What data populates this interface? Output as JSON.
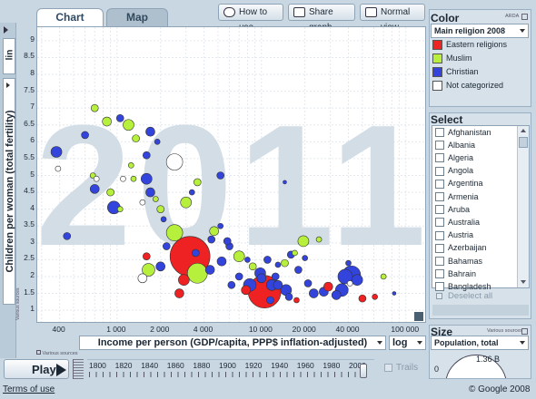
{
  "tabs": {
    "chart": "Chart",
    "map": "Map"
  },
  "toolbar": {
    "how_to_use": "How to use",
    "share_graph": "Share graph",
    "normal_view": "Normal view"
  },
  "y_scale": "lin",
  "y_axis": {
    "label": "Children per woman (total fertility)",
    "ticks": [
      "9",
      "8.5",
      "8",
      "7.5",
      "7",
      "6.5",
      "6",
      "5.5",
      "5",
      "4.5",
      "4",
      "3.5",
      "3",
      "2.5",
      "2",
      "1.5",
      "1"
    ],
    "sources": "Various sources"
  },
  "x_axis": {
    "label": "Income per person (GDP/capita, PPP$ inflation-adjusted)",
    "ticks": [
      "400",
      "1 000",
      "2 000",
      "4 000",
      "10 000",
      "20 000",
      "40 000",
      "100 000"
    ],
    "scale": "log",
    "sources": "Various sources"
  },
  "year_watermark": "2011",
  "color_panel": {
    "title": "Color",
    "source": "ARDA",
    "dropdown": "Main religion 2008",
    "legend": [
      {
        "label": "Eastern religions",
        "color": "#ee2222"
      },
      {
        "label": "Muslim",
        "color": "#b6f03c"
      },
      {
        "label": "Christian",
        "color": "#3344dd"
      },
      {
        "label": "Not categorized",
        "color": "#ffffff"
      }
    ]
  },
  "select_panel": {
    "title": "Select",
    "countries": [
      "Afghanistan",
      "Albania",
      "Algeria",
      "Angola",
      "Argentina",
      "Armenia",
      "Aruba",
      "Australia",
      "Austria",
      "Azerbaijan",
      "Bahamas",
      "Bahrain",
      "Bangladesh"
    ],
    "deselect": "Deselect all"
  },
  "size_panel": {
    "title": "Size",
    "source": "Various sources",
    "dropdown": "Population, total",
    "min": "0",
    "max": "1.36 B"
  },
  "play": {
    "label": "Play",
    "trails": "Trails",
    "years": [
      "1800",
      "1820",
      "1840",
      "1860",
      "1880",
      "1900",
      "1920",
      "1940",
      "1960",
      "1980",
      "2000"
    ]
  },
  "footer": {
    "terms": "Terms of use",
    "copyright": "© Google 2008"
  },
  "chart_data": {
    "type": "scatter",
    "title": "",
    "xlabel": "Income per person (GDP/capita, PPP$ inflation-adjusted)",
    "ylabel": "Children per woman (total fertility)",
    "x_scale": "log",
    "xlim": [
      280,
      140000
    ],
    "ylim": [
      0.6,
      9.4
    ],
    "x_ticks": [
      400,
      1000,
      2000,
      4000,
      10000,
      20000,
      40000,
      100000
    ],
    "y_ticks": [
      1,
      1.5,
      2,
      2.5,
      3,
      3.5,
      4,
      4.5,
      5,
      5.5,
      6,
      6.5,
      7,
      7.5,
      8,
      8.5,
      9
    ],
    "colors": {
      "E": "#ee2222",
      "M": "#b6f03c",
      "C": "#3344dd",
      "N": "#ffffff"
    },
    "points": [
      [
        "M",
        700,
        7.0,
        4
      ],
      [
        "C",
        380,
        5.7,
        6
      ],
      [
        "N",
        390,
        5.2,
        3
      ],
      [
        "C",
        600,
        6.2,
        4
      ],
      [
        "M",
        850,
        6.6,
        5
      ],
      [
        "C",
        1050,
        6.7,
        4
      ],
      [
        "M",
        1200,
        6.5,
        6
      ],
      [
        "M",
        1350,
        6.1,
        4
      ],
      [
        "C",
        1700,
        6.3,
        5
      ],
      [
        "N",
        2500,
        5.4,
        9
      ],
      [
        "C",
        1600,
        5.6,
        4
      ],
      [
        "M",
        1250,
        5.3,
        3
      ],
      [
        "M",
        680,
        5.0,
        3
      ],
      [
        "N",
        720,
        4.9,
        3
      ],
      [
        "C",
        700,
        4.6,
        5
      ],
      [
        "N",
        1100,
        4.9,
        3
      ],
      [
        "M",
        1300,
        4.9,
        3
      ],
      [
        "C",
        1600,
        4.9,
        6
      ],
      [
        "N",
        1500,
        4.2,
        3
      ],
      [
        "M",
        900,
        4.5,
        4
      ],
      [
        "C",
        950,
        4.05,
        7
      ],
      [
        "M",
        1050,
        4.0,
        3
      ],
      [
        "C",
        1700,
        4.5,
        5
      ],
      [
        "M",
        1850,
        4.3,
        3
      ],
      [
        "M",
        2000,
        4.0,
        4
      ],
      [
        "C",
        2100,
        3.7,
        3
      ],
      [
        "M",
        3000,
        4.2,
        6
      ],
      [
        "C",
        3300,
        4.5,
        3
      ],
      [
        "M",
        3600,
        4.8,
        4
      ],
      [
        "C",
        5200,
        5.0,
        4
      ],
      [
        "C",
        14500,
        4.8,
        2
      ],
      [
        "C",
        450,
        3.2,
        4
      ],
      [
        "M",
        2500,
        3.3,
        9
      ],
      [
        "C",
        2200,
        2.9,
        4
      ],
      [
        "E",
        1600,
        2.6,
        4
      ],
      [
        "M",
        4700,
        3.35,
        5
      ],
      [
        "C",
        5200,
        3.5,
        3
      ],
      [
        "C",
        4500,
        3.1,
        4
      ],
      [
        "M",
        7000,
        2.6,
        6
      ],
      [
        "C",
        6000,
        2.9,
        4
      ],
      [
        "E",
        3200,
        2.6,
        22
      ],
      [
        "E",
        2900,
        1.9,
        6
      ],
      [
        "M",
        3600,
        2.1,
        11
      ],
      [
        "M",
        1650,
        2.2,
        7
      ],
      [
        "N",
        1500,
        1.95,
        5
      ],
      [
        "C",
        2000,
        2.3,
        5
      ],
      [
        "E",
        2700,
        1.5,
        5
      ],
      [
        "C",
        4400,
        2.2,
        5
      ],
      [
        "C",
        5300,
        2.45,
        5
      ],
      [
        "M",
        8700,
        2.3,
        4
      ],
      [
        "C",
        9800,
        2.1,
        6
      ],
      [
        "E",
        7800,
        1.6,
        5
      ],
      [
        "C",
        8300,
        1.75,
        7
      ],
      [
        "E",
        10500,
        1.55,
        18
      ],
      [
        "C",
        13000,
        1.75,
        5
      ],
      [
        "C",
        12500,
        2.0,
        4
      ],
      [
        "C",
        14800,
        1.6,
        6
      ],
      [
        "M",
        14500,
        2.4,
        4
      ],
      [
        "C",
        16000,
        2.65,
        4
      ],
      [
        "M",
        19500,
        3.05,
        6
      ],
      [
        "C",
        20000,
        2.55,
        3
      ],
      [
        "M",
        25000,
        3.1,
        3
      ],
      [
        "C",
        21000,
        1.8,
        4
      ],
      [
        "C",
        23000,
        1.5,
        5
      ],
      [
        "C",
        27000,
        1.55,
        5
      ],
      [
        "E",
        29000,
        1.7,
        5
      ],
      [
        "C",
        33000,
        1.45,
        5
      ],
      [
        "C",
        36000,
        1.6,
        7
      ],
      [
        "C",
        38000,
        2.0,
        8
      ],
      [
        "C",
        42000,
        2.05,
        10
      ],
      [
        "C",
        46000,
        1.9,
        6
      ],
      [
        "E",
        50000,
        1.35,
        4
      ],
      [
        "E",
        61000,
        1.4,
        3
      ],
      [
        "M",
        70000,
        2.0,
        3
      ],
      [
        "C",
        83000,
        1.5,
        2
      ],
      [
        "C",
        11500,
        1.3,
        4
      ],
      [
        "C",
        15500,
        1.4,
        4
      ],
      [
        "E",
        17500,
        1.3,
        3
      ],
      [
        "C",
        7000,
        2.0,
        4
      ],
      [
        "C",
        6200,
        1.75,
        4
      ],
      [
        "N",
        41000,
        1.8,
        3
      ],
      [
        "C",
        13000,
        2.35,
        3
      ],
      [
        "C",
        11000,
        2.5,
        4
      ],
      [
        "C",
        8000,
        2.5,
        3
      ],
      [
        "C",
        10000,
        1.95,
        5
      ],
      [
        "C",
        11800,
        1.75,
        6
      ],
      [
        "C",
        18000,
        2.2,
        4
      ],
      [
        "M",
        17000,
        2.7,
        3
      ],
      [
        "C",
        40000,
        2.4,
        3
      ],
      [
        "C",
        3500,
        2.7,
        4
      ],
      [
        "C",
        5800,
        3.05,
        4
      ],
      [
        "C",
        1900,
        6.0,
        3
      ]
    ]
  }
}
